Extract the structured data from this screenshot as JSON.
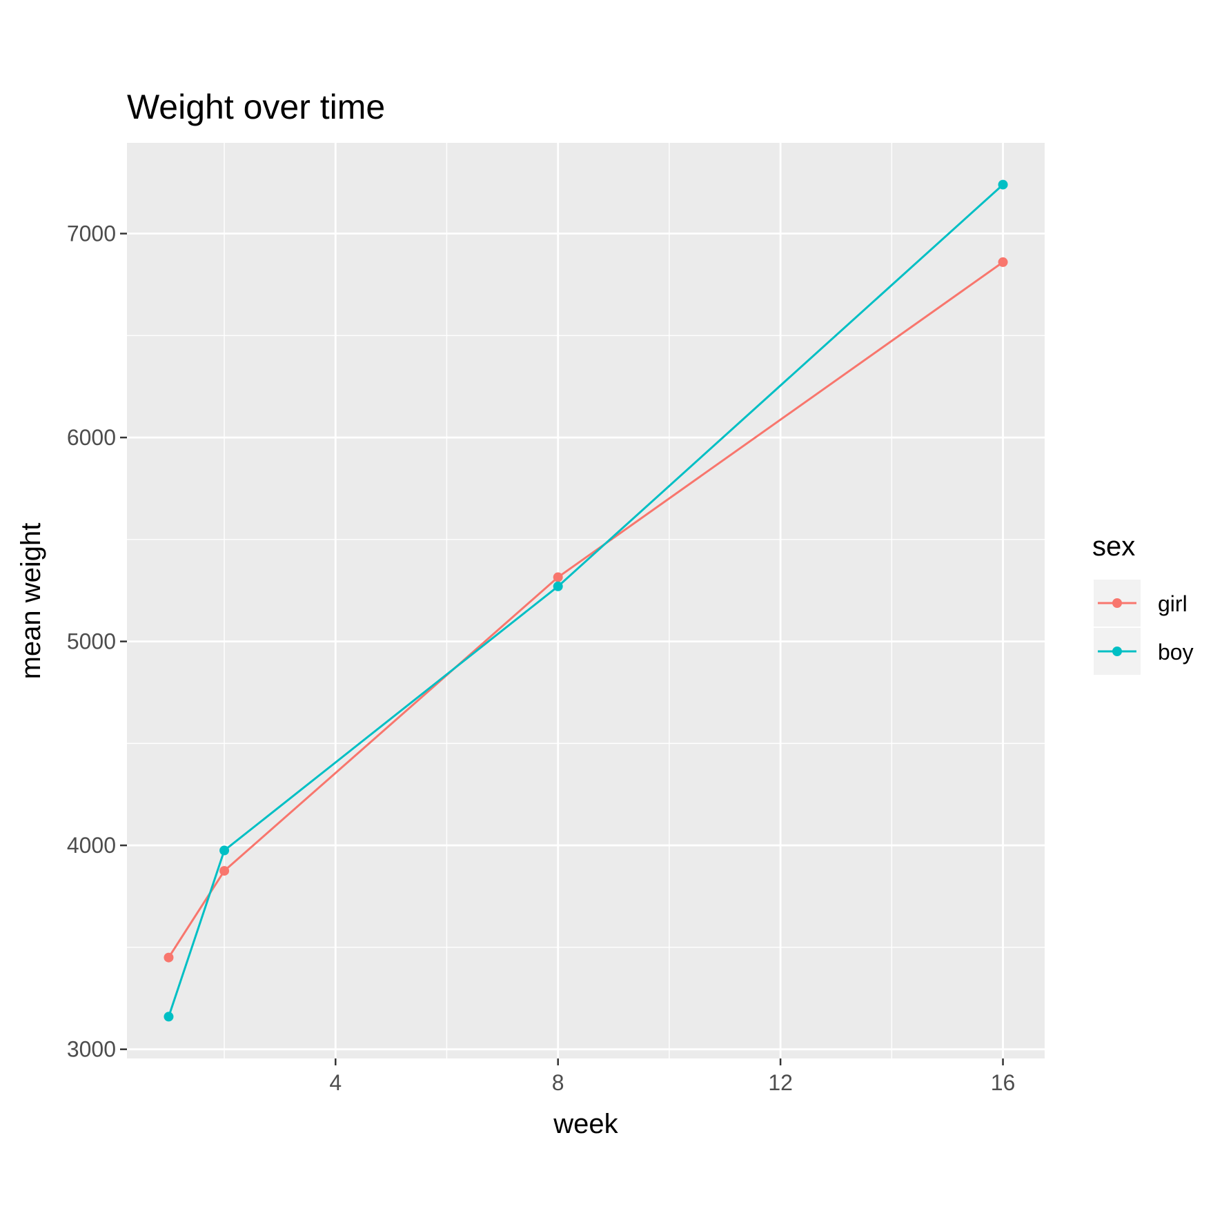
{
  "chart_data": {
    "type": "line",
    "title": "Weight over time",
    "xlabel": "week",
    "ylabel": "mean weight",
    "xlim": [
      0.25,
      16.75
    ],
    "ylim": [
      2955,
      7445
    ],
    "x_ticks": [
      4,
      8,
      12,
      16
    ],
    "y_ticks": [
      3000,
      4000,
      5000,
      6000,
      7000
    ],
    "x_minor_ticks": [
      2,
      6,
      10,
      14
    ],
    "y_minor_ticks": [
      3500,
      4500,
      5500,
      6500
    ],
    "grid": true,
    "legend": {
      "title": "sex",
      "position": "right"
    },
    "series": [
      {
        "name": "girl",
        "color": "#F8766D",
        "x": [
          1,
          2,
          8,
          16
        ],
        "y": [
          3450,
          3875,
          5315,
          6860
        ]
      },
      {
        "name": "boy",
        "color": "#00BFC4",
        "x": [
          1,
          2,
          8,
          16
        ],
        "y": [
          3160,
          3975,
          5270,
          7240
        ]
      }
    ]
  }
}
